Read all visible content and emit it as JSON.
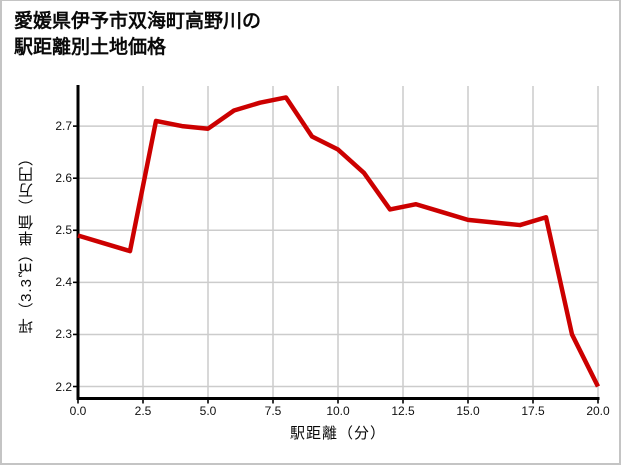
{
  "title": {
    "line1": "愛媛県伊予市双海町高野川の",
    "line2": "駅距離別土地価格"
  },
  "colors": {
    "line": "#cc0000",
    "grid": "#cccccc",
    "axis": "#000000",
    "background": "#ffffff",
    "border": "#c4c4c4"
  },
  "chart_data": {
    "type": "line",
    "title": "愛媛県伊予市双海町高野川の駅距離別土地価格",
    "xlabel": "駅距離（分）",
    "ylabel": "坪（3.3㎡）単価（万円）",
    "x": [
      0,
      1,
      2,
      3,
      4,
      5,
      6,
      7,
      8,
      9,
      10,
      11,
      12,
      13,
      14,
      15,
      16,
      17,
      18,
      19,
      20
    ],
    "y": [
      2.49,
      2.475,
      2.46,
      2.71,
      2.7,
      2.695,
      2.73,
      2.745,
      2.755,
      2.68,
      2.655,
      2.61,
      2.54,
      2.55,
      2.535,
      2.52,
      2.515,
      2.51,
      2.525,
      2.3,
      2.2
    ],
    "xlim": [
      0,
      20
    ],
    "ylim": [
      2.177,
      2.777
    ],
    "xticks": [
      0,
      2.5,
      5,
      7.5,
      10,
      12.5,
      15,
      17.5,
      20
    ],
    "xtick_labels": [
      "0.0",
      "2.5",
      "5.0",
      "7.5",
      "10.0",
      "12.5",
      "15.0",
      "17.5",
      "20.0"
    ],
    "yticks": [
      2.2,
      2.3,
      2.4,
      2.5,
      2.6,
      2.7
    ],
    "ytick_labels": [
      "2.2",
      "2.3",
      "2.4",
      "2.5",
      "2.6",
      "2.7"
    ],
    "grid": true,
    "legend": "none"
  }
}
